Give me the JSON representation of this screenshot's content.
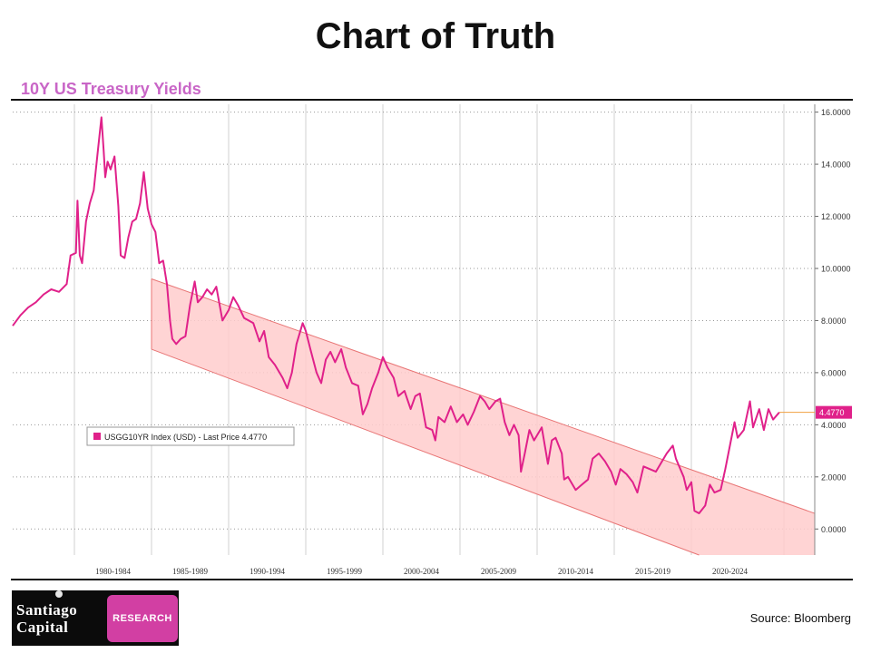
{
  "page": {
    "title": "Chart of Truth",
    "source": "Source: Bloomberg"
  },
  "logo": {
    "line1": "Santiago",
    "line2": "Capital",
    "tag": "RESEARCH"
  },
  "chart_data": {
    "type": "line",
    "title": "10Y US Treasury Yields",
    "xlabel": "",
    "ylabel": "",
    "x_range": [
      1976.0,
      2028.0
    ],
    "y_range": [
      -1.0,
      16.3
    ],
    "grid": true,
    "y_ticks": [
      "16.0000",
      "14.0000",
      "12.0000",
      "10.0000",
      "8.0000",
      "6.0000",
      "4.0000",
      "2.0000",
      "0.0000"
    ],
    "y_tick_values": [
      16,
      14,
      12,
      10,
      8,
      6,
      4,
      2,
      0
    ],
    "x_ticks": [
      {
        "label": "1980-1984",
        "x": 1980
      },
      {
        "label": "1985-1989",
        "x": 1985
      },
      {
        "label": "1990-1994",
        "x": 1990
      },
      {
        "label": "1995-1999",
        "x": 1995
      },
      {
        "label": "2000-2004",
        "x": 2000
      },
      {
        "label": "2005-2009",
        "x": 2005
      },
      {
        "label": "2010-2014",
        "x": 2010
      },
      {
        "label": "2015-2019",
        "x": 2015
      },
      {
        "label": "2020-2024",
        "x": 2020
      }
    ],
    "legend": {
      "label": "USGG10YR Index (USD) - Last Price 4.4770",
      "position": "left"
    },
    "last_price": {
      "label": "4.4770",
      "value": 4.477
    },
    "colors": {
      "line": "#e0218a",
      "channel_fill": "#ffcccc",
      "channel_edge": "#e87575",
      "last_price_tag": "#e0218a"
    },
    "series": [
      {
        "values": [
          [
            1976.0,
            7.8
          ],
          [
            1976.5,
            8.2
          ],
          [
            1977.0,
            8.5
          ],
          [
            1977.5,
            8.7
          ],
          [
            1978.0,
            9.0
          ],
          [
            1978.5,
            9.2
          ],
          [
            1979.0,
            9.1
          ],
          [
            1979.5,
            9.4
          ],
          [
            1979.75,
            10.5
          ],
          [
            1980.1,
            10.6
          ],
          [
            1980.2,
            12.6
          ],
          [
            1980.35,
            10.5
          ],
          [
            1980.5,
            10.2
          ],
          [
            1980.75,
            11.8
          ],
          [
            1981.0,
            12.5
          ],
          [
            1981.25,
            13.0
          ],
          [
            1981.5,
            14.4
          ],
          [
            1981.75,
            15.8
          ],
          [
            1981.9,
            14.5
          ],
          [
            1982.0,
            13.5
          ],
          [
            1982.15,
            14.1
          ],
          [
            1982.35,
            13.8
          ],
          [
            1982.6,
            14.3
          ],
          [
            1982.85,
            12.4
          ],
          [
            1983.0,
            10.5
          ],
          [
            1983.25,
            10.4
          ],
          [
            1983.5,
            11.2
          ],
          [
            1983.75,
            11.8
          ],
          [
            1984.0,
            11.9
          ],
          [
            1984.25,
            12.5
          ],
          [
            1984.5,
            13.7
          ],
          [
            1984.75,
            12.3
          ],
          [
            1985.0,
            11.7
          ],
          [
            1985.25,
            11.4
          ],
          [
            1985.5,
            10.2
          ],
          [
            1985.75,
            10.3
          ],
          [
            1986.0,
            9.4
          ],
          [
            1986.2,
            8.0
          ],
          [
            1986.35,
            7.3
          ],
          [
            1986.6,
            7.1
          ],
          [
            1986.9,
            7.3
          ],
          [
            1987.2,
            7.4
          ],
          [
            1987.5,
            8.6
          ],
          [
            1987.8,
            9.5
          ],
          [
            1988.0,
            8.7
          ],
          [
            1988.3,
            8.9
          ],
          [
            1988.6,
            9.2
          ],
          [
            1988.9,
            9.0
          ],
          [
            1989.2,
            9.3
          ],
          [
            1989.6,
            8.0
          ],
          [
            1990.0,
            8.4
          ],
          [
            1990.3,
            8.9
          ],
          [
            1990.6,
            8.6
          ],
          [
            1991.0,
            8.1
          ],
          [
            1991.3,
            8.0
          ],
          [
            1991.6,
            7.9
          ],
          [
            1992.0,
            7.2
          ],
          [
            1992.3,
            7.6
          ],
          [
            1992.6,
            6.6
          ],
          [
            1993.0,
            6.3
          ],
          [
            1993.5,
            5.8
          ],
          [
            1993.8,
            5.4
          ],
          [
            1994.1,
            6.0
          ],
          [
            1994.4,
            7.1
          ],
          [
            1994.8,
            7.9
          ],
          [
            1995.0,
            7.6
          ],
          [
            1995.3,
            6.9
          ],
          [
            1995.7,
            6.0
          ],
          [
            1996.0,
            5.6
          ],
          [
            1996.3,
            6.5
          ],
          [
            1996.6,
            6.8
          ],
          [
            1996.9,
            6.4
          ],
          [
            1997.3,
            6.9
          ],
          [
            1997.6,
            6.2
          ],
          [
            1998.0,
            5.6
          ],
          [
            1998.4,
            5.5
          ],
          [
            1998.7,
            4.4
          ],
          [
            1999.0,
            4.8
          ],
          [
            1999.3,
            5.4
          ],
          [
            1999.7,
            6.0
          ],
          [
            2000.0,
            6.6
          ],
          [
            2000.3,
            6.2
          ],
          [
            2000.7,
            5.8
          ],
          [
            2001.0,
            5.1
          ],
          [
            2001.4,
            5.3
          ],
          [
            2001.8,
            4.6
          ],
          [
            2002.1,
            5.1
          ],
          [
            2002.4,
            5.2
          ],
          [
            2002.8,
            3.9
          ],
          [
            2003.2,
            3.8
          ],
          [
            2003.4,
            3.4
          ],
          [
            2003.6,
            4.3
          ],
          [
            2004.0,
            4.1
          ],
          [
            2004.4,
            4.7
          ],
          [
            2004.8,
            4.1
          ],
          [
            2005.2,
            4.4
          ],
          [
            2005.5,
            4.0
          ],
          [
            2005.9,
            4.5
          ],
          [
            2006.3,
            5.1
          ],
          [
            2006.6,
            4.9
          ],
          [
            2006.9,
            4.6
          ],
          [
            2007.3,
            4.9
          ],
          [
            2007.6,
            5.0
          ],
          [
            2007.9,
            4.1
          ],
          [
            2008.2,
            3.6
          ],
          [
            2008.5,
            4.0
          ],
          [
            2008.8,
            3.6
          ],
          [
            2008.95,
            2.2
          ],
          [
            2009.2,
            2.9
          ],
          [
            2009.5,
            3.8
          ],
          [
            2009.8,
            3.4
          ],
          [
            2010.1,
            3.7
          ],
          [
            2010.3,
            3.9
          ],
          [
            2010.7,
            2.5
          ],
          [
            2010.95,
            3.4
          ],
          [
            2011.2,
            3.5
          ],
          [
            2011.6,
            2.9
          ],
          [
            2011.75,
            1.9
          ],
          [
            2012.0,
            2.0
          ],
          [
            2012.5,
            1.5
          ],
          [
            2012.9,
            1.7
          ],
          [
            2013.3,
            1.9
          ],
          [
            2013.6,
            2.7
          ],
          [
            2014.0,
            2.9
          ],
          [
            2014.4,
            2.6
          ],
          [
            2014.8,
            2.2
          ],
          [
            2015.1,
            1.7
          ],
          [
            2015.4,
            2.3
          ],
          [
            2015.8,
            2.1
          ],
          [
            2016.2,
            1.8
          ],
          [
            2016.5,
            1.4
          ],
          [
            2016.9,
            2.4
          ],
          [
            2017.3,
            2.3
          ],
          [
            2017.7,
            2.2
          ],
          [
            2018.0,
            2.5
          ],
          [
            2018.4,
            2.9
          ],
          [
            2018.8,
            3.2
          ],
          [
            2019.0,
            2.7
          ],
          [
            2019.5,
            2.0
          ],
          [
            2019.7,
            1.5
          ],
          [
            2020.0,
            1.8
          ],
          [
            2020.2,
            0.7
          ],
          [
            2020.5,
            0.6
          ],
          [
            2020.9,
            0.9
          ],
          [
            2021.2,
            1.7
          ],
          [
            2021.5,
            1.4
          ],
          [
            2021.9,
            1.5
          ],
          [
            2022.2,
            2.3
          ],
          [
            2022.4,
            2.9
          ],
          [
            2022.8,
            4.1
          ],
          [
            2023.0,
            3.5
          ],
          [
            2023.4,
            3.8
          ],
          [
            2023.8,
            4.9
          ],
          [
            2024.0,
            3.9
          ],
          [
            2024.4,
            4.6
          ],
          [
            2024.7,
            3.8
          ],
          [
            2025.0,
            4.6
          ],
          [
            2025.3,
            4.2
          ],
          [
            2025.7,
            4.477
          ]
        ]
      }
    ],
    "channel": {
      "upper": [
        [
          1985.0,
          9.6
        ],
        [
          2028.0,
          0.6
        ]
      ],
      "lower": [
        [
          1985.0,
          6.9
        ],
        [
          2020.5,
          -1.0
        ]
      ]
    }
  }
}
